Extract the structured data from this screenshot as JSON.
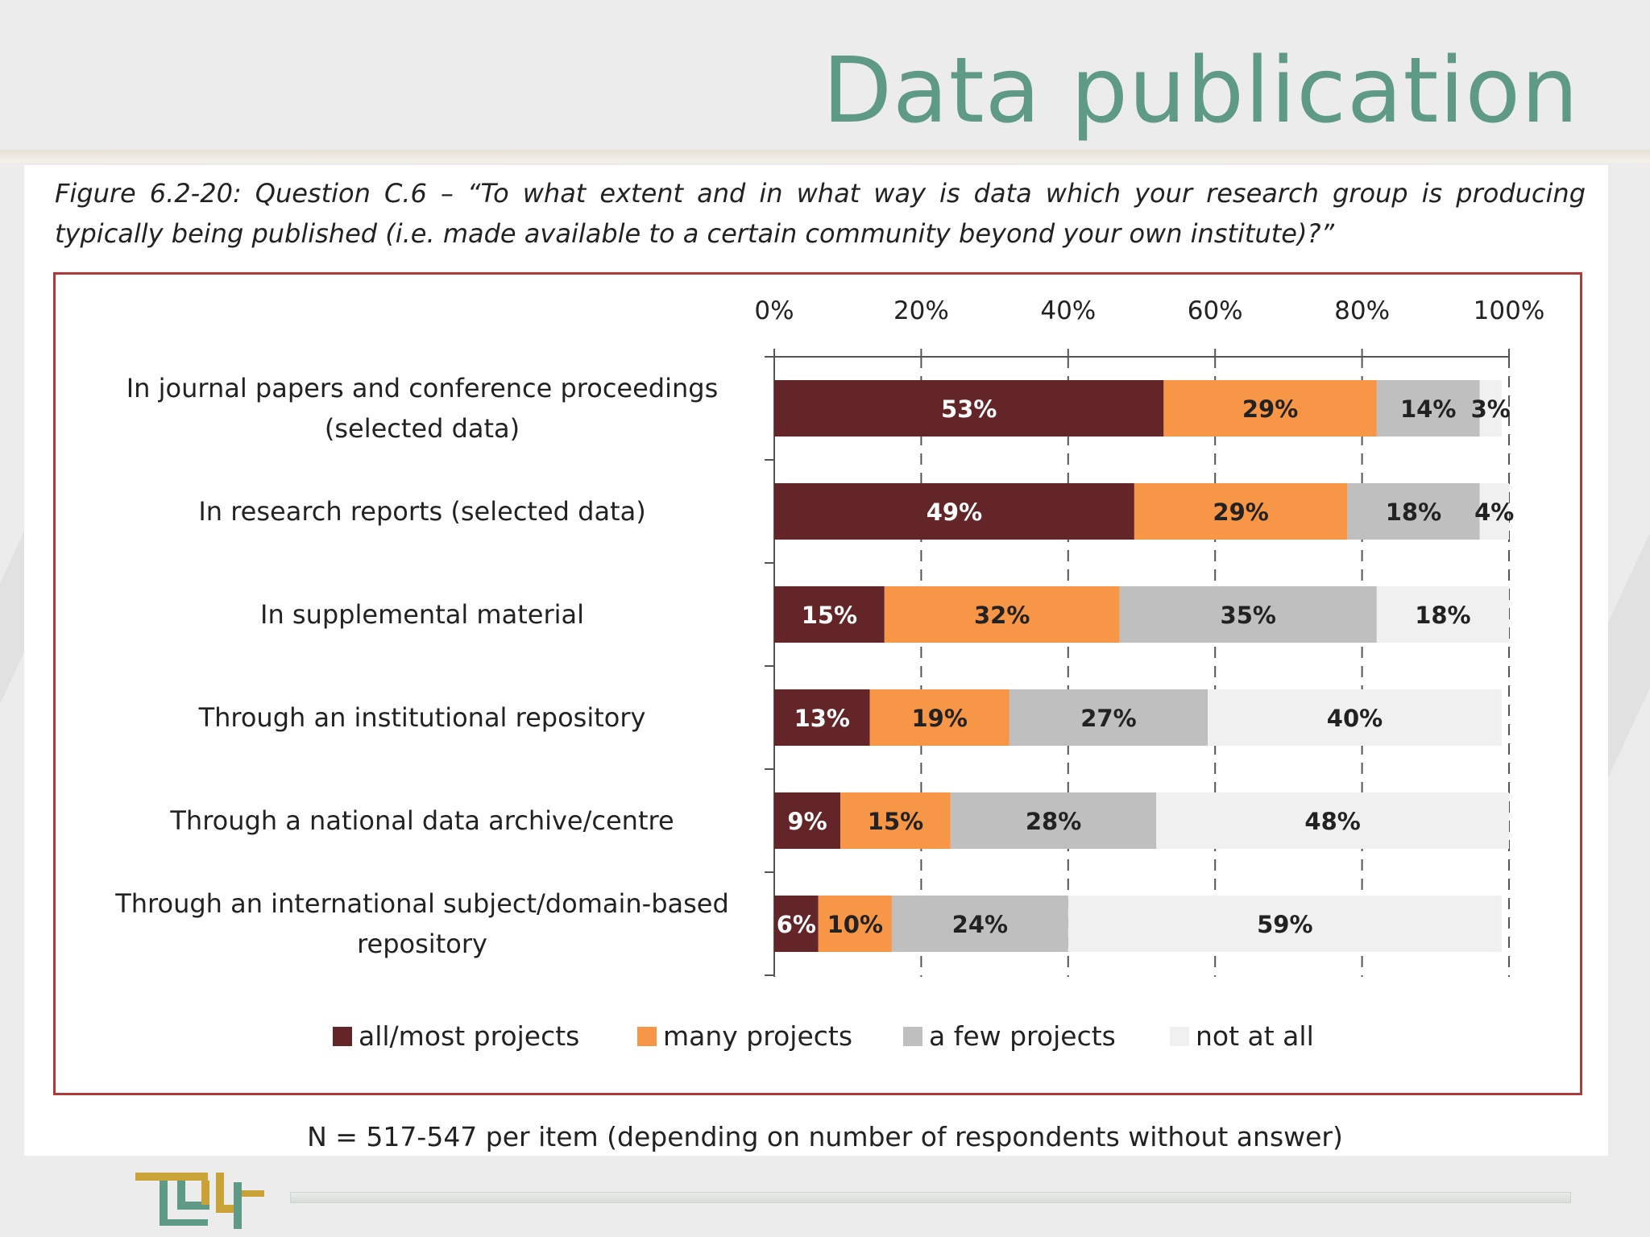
{
  "slide": {
    "title": "Data publication",
    "caption": "Figure 6.2-20: Question C.6 – “To what extent and in what way is data which your research group is producing typically being published (i.e. made available to a certain community beyond your own institute)?”",
    "footnote": "N = 517-547 per item (depending on number of respondents without answer)"
  },
  "colors": {
    "title": "#5f9a86",
    "frame": "#b03a3a",
    "all_most": "#632527",
    "many": "#f79646",
    "few": "#bfbfbf",
    "not_at_all": "#f0f0f0",
    "logo_gold": "#c9a338",
    "logo_teal": "#5f9a86"
  },
  "chart_data": {
    "type": "bar",
    "orientation": "horizontal",
    "stacked": true,
    "xlim": [
      0,
      100
    ],
    "x_ticks": [
      "0%",
      "20%",
      "40%",
      "60%",
      "80%",
      "100%"
    ],
    "grid": true,
    "legend_position": "bottom",
    "categories": [
      [
        "In journal papers and conference proceedings",
        "(selected data)"
      ],
      [
        "In research reports (selected data)"
      ],
      [
        "In supplemental material"
      ],
      [
        "Through an institutional repository"
      ],
      [
        "Through a national data archive/centre"
      ],
      [
        "Through an international subject/domain-based",
        "repository"
      ]
    ],
    "series": [
      {
        "name": "all/most projects",
        "color": "#632527",
        "label_color": "#ffffff",
        "values": [
          53,
          49,
          15,
          13,
          9,
          6
        ]
      },
      {
        "name": "many projects",
        "color": "#f79646",
        "label_color": "#222222",
        "values": [
          29,
          29,
          32,
          19,
          15,
          10
        ]
      },
      {
        "name": "a few projects",
        "color": "#bfbfbf",
        "label_color": "#222222",
        "values": [
          14,
          18,
          35,
          27,
          28,
          24
        ]
      },
      {
        "name": "not at all",
        "color": "#f0f0f0",
        "label_color": "#222222",
        "values": [
          3,
          4,
          18,
          40,
          48,
          59
        ]
      }
    ]
  }
}
